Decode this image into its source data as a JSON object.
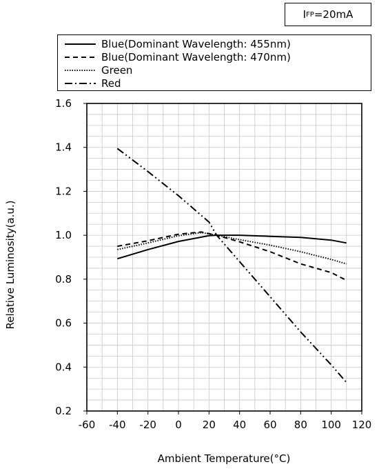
{
  "condition": {
    "label_main": "I",
    "label_sub": "FP",
    "label_value": "=20mA"
  },
  "chart_data": {
    "type": "line",
    "xlabel": "Ambient Temperature(°C)",
    "ylabel": "Relative Luminosity(a.u.)",
    "xlim": [
      -60,
      120
    ],
    "ylim": [
      0.2,
      1.6
    ],
    "xticks": [
      -60,
      -40,
      -20,
      0,
      20,
      40,
      60,
      80,
      100,
      120
    ],
    "yticks": [
      0.2,
      0.4,
      0.6,
      0.8,
      1.0,
      1.2,
      1.4,
      1.6
    ],
    "xtick_labels": [
      "-60",
      "-40",
      "-20",
      "0",
      "20",
      "40",
      "60",
      "80",
      "100",
      "120"
    ],
    "ytick_labels": [
      "0.2",
      "0.4",
      "0.6",
      "0.8",
      "1.0",
      "1.2",
      "1.4",
      "1.6"
    ],
    "grid": true,
    "legend_position": "top",
    "series": [
      {
        "name": "Blue(Dominant Wavelength: 455nm)",
        "style": "solid",
        "x": [
          -40,
          -20,
          0,
          20,
          25,
          40,
          60,
          80,
          100,
          110
        ],
        "y": [
          0.893,
          0.935,
          0.972,
          0.998,
          1.0,
          1.0,
          0.995,
          0.99,
          0.978,
          0.965
        ]
      },
      {
        "name": "Blue(Dominant Wavelength: 470nm)",
        "style": "dashed",
        "x": [
          -40,
          -20,
          0,
          15,
          25,
          40,
          60,
          80,
          100,
          110
        ],
        "y": [
          0.95,
          0.975,
          1.005,
          1.015,
          1.0,
          0.97,
          0.925,
          0.87,
          0.83,
          0.795
        ]
      },
      {
        "name": "Green",
        "style": "dotted",
        "x": [
          -40,
          -20,
          0,
          15,
          25,
          40,
          60,
          80,
          100,
          110
        ],
        "y": [
          0.935,
          0.965,
          0.998,
          1.012,
          1.0,
          0.98,
          0.955,
          0.925,
          0.89,
          0.87
        ]
      },
      {
        "name": "Red",
        "style": "dash-dot-dot",
        "x": [
          -40,
          -20,
          0,
          20,
          25,
          40,
          60,
          80,
          100,
          110
        ],
        "y": [
          1.395,
          1.29,
          1.18,
          1.06,
          1.0,
          0.88,
          0.72,
          0.56,
          0.41,
          0.33
        ]
      }
    ]
  }
}
